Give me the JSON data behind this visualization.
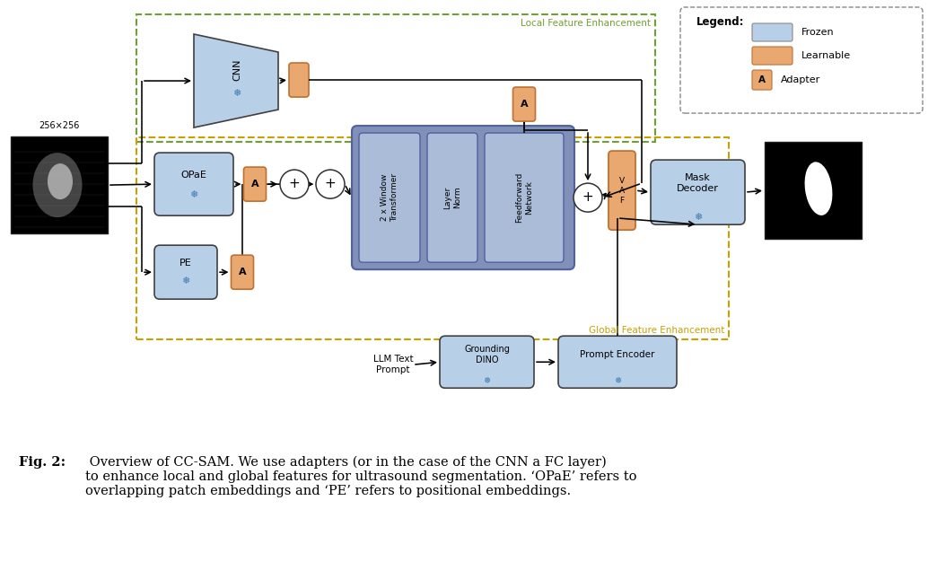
{
  "fig_width": 10.44,
  "fig_height": 6.26,
  "dpi": 100,
  "bg_color": "#ffffff",
  "frozen_color": "#b8cfe8",
  "learnable_color": "#e8a870",
  "adapter_border": "#c07030",
  "local_green": "#70a030",
  "global_yellow": "#c8a000",
  "transformer_outer": "#8090b8",
  "transformer_inner": "#aabcd8",
  "legend_edge": "#888888",
  "caption_bold": "Fig. 2:",
  "caption_rest": " Overview of CC-SAM. We use adapters (or in the case of the CNN a FC layer)\nto enhance local and global features for ultrasound segmentation. ‘OPaE’ refers to\noverlapping patch embeddings and ‘PE’ refers to positional embeddings.",
  "local_label": "Local Feature Enhancement",
  "global_label": "Global Feature Enhancement"
}
